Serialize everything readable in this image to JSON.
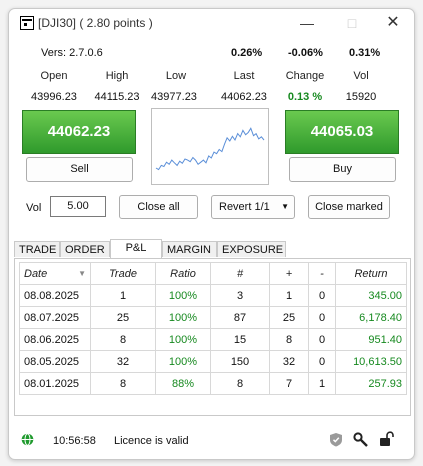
{
  "window": {
    "title": "[DJI30] ( 2.80 points )"
  },
  "info": {
    "version": "Vers: 2.7.0.6",
    "pct_1": "0.26%",
    "pct_2": "-0.06%",
    "pct_3": "0.31%"
  },
  "quote": {
    "labels": {
      "open": "Open",
      "high": "High",
      "low": "Low",
      "last": "Last",
      "change": "Change",
      "vol": "Vol"
    },
    "values": {
      "open": "43996.23",
      "high": "44115.23",
      "low": "43977.23",
      "last": "44062.23",
      "change": "0.13 %",
      "vol": "15920"
    },
    "change_color": "#16891f"
  },
  "trade": {
    "sell_price": "44062.23",
    "buy_price": "44065.03",
    "sell_label": "Sell",
    "buy_label": "Buy",
    "price_box_color": "#3faa34"
  },
  "controls": {
    "vol_label": "Vol",
    "vol_value": "5.00",
    "close_all": "Close all",
    "revert": "Revert 1/1",
    "close_marked": "Close marked"
  },
  "tabs": [
    "TRADE",
    "ORDER",
    "P&L",
    "MARGIN",
    "EXPOSURE"
  ],
  "active_tab": "P&L",
  "pnl": {
    "columns": [
      "Date",
      "Trade",
      "Ratio",
      "#",
      "+",
      "-",
      "Return"
    ],
    "rows": [
      [
        "08.08.2025",
        "1",
        "100%",
        "3",
        "1",
        "0",
        "345.00"
      ],
      [
        "08.07.2025",
        "25",
        "100%",
        "87",
        "25",
        "0",
        "6,178.40"
      ],
      [
        "08.06.2025",
        "8",
        "100%",
        "15",
        "8",
        "0",
        "951.40"
      ],
      [
        "08.05.2025",
        "32",
        "100%",
        "150",
        "32",
        "0",
        "10,613.50"
      ],
      [
        "08.01.2025",
        "8",
        "88%",
        "8",
        "7",
        "1",
        "257.93"
      ]
    ]
  },
  "status": {
    "time": "10:56:58",
    "licence": "Licence is valid",
    "icons": [
      "globe-icon",
      "shield-icon",
      "wrench-icon",
      "unlock-icon"
    ]
  },
  "mini_chart": {
    "series": [
      0.15,
      0.12,
      0.2,
      0.18,
      0.26,
      0.22,
      0.3,
      0.25,
      0.2,
      0.28,
      0.24,
      0.32,
      0.3,
      0.27,
      0.35,
      0.3,
      0.22,
      0.26,
      0.3,
      0.25,
      0.38,
      0.34,
      0.45,
      0.42,
      0.5,
      0.46,
      0.6,
      0.72,
      0.66,
      0.75,
      0.68,
      0.8,
      0.74,
      0.86,
      0.78,
      0.82,
      0.9,
      0.76,
      0.8,
      0.7,
      0.74,
      0.68
    ]
  }
}
